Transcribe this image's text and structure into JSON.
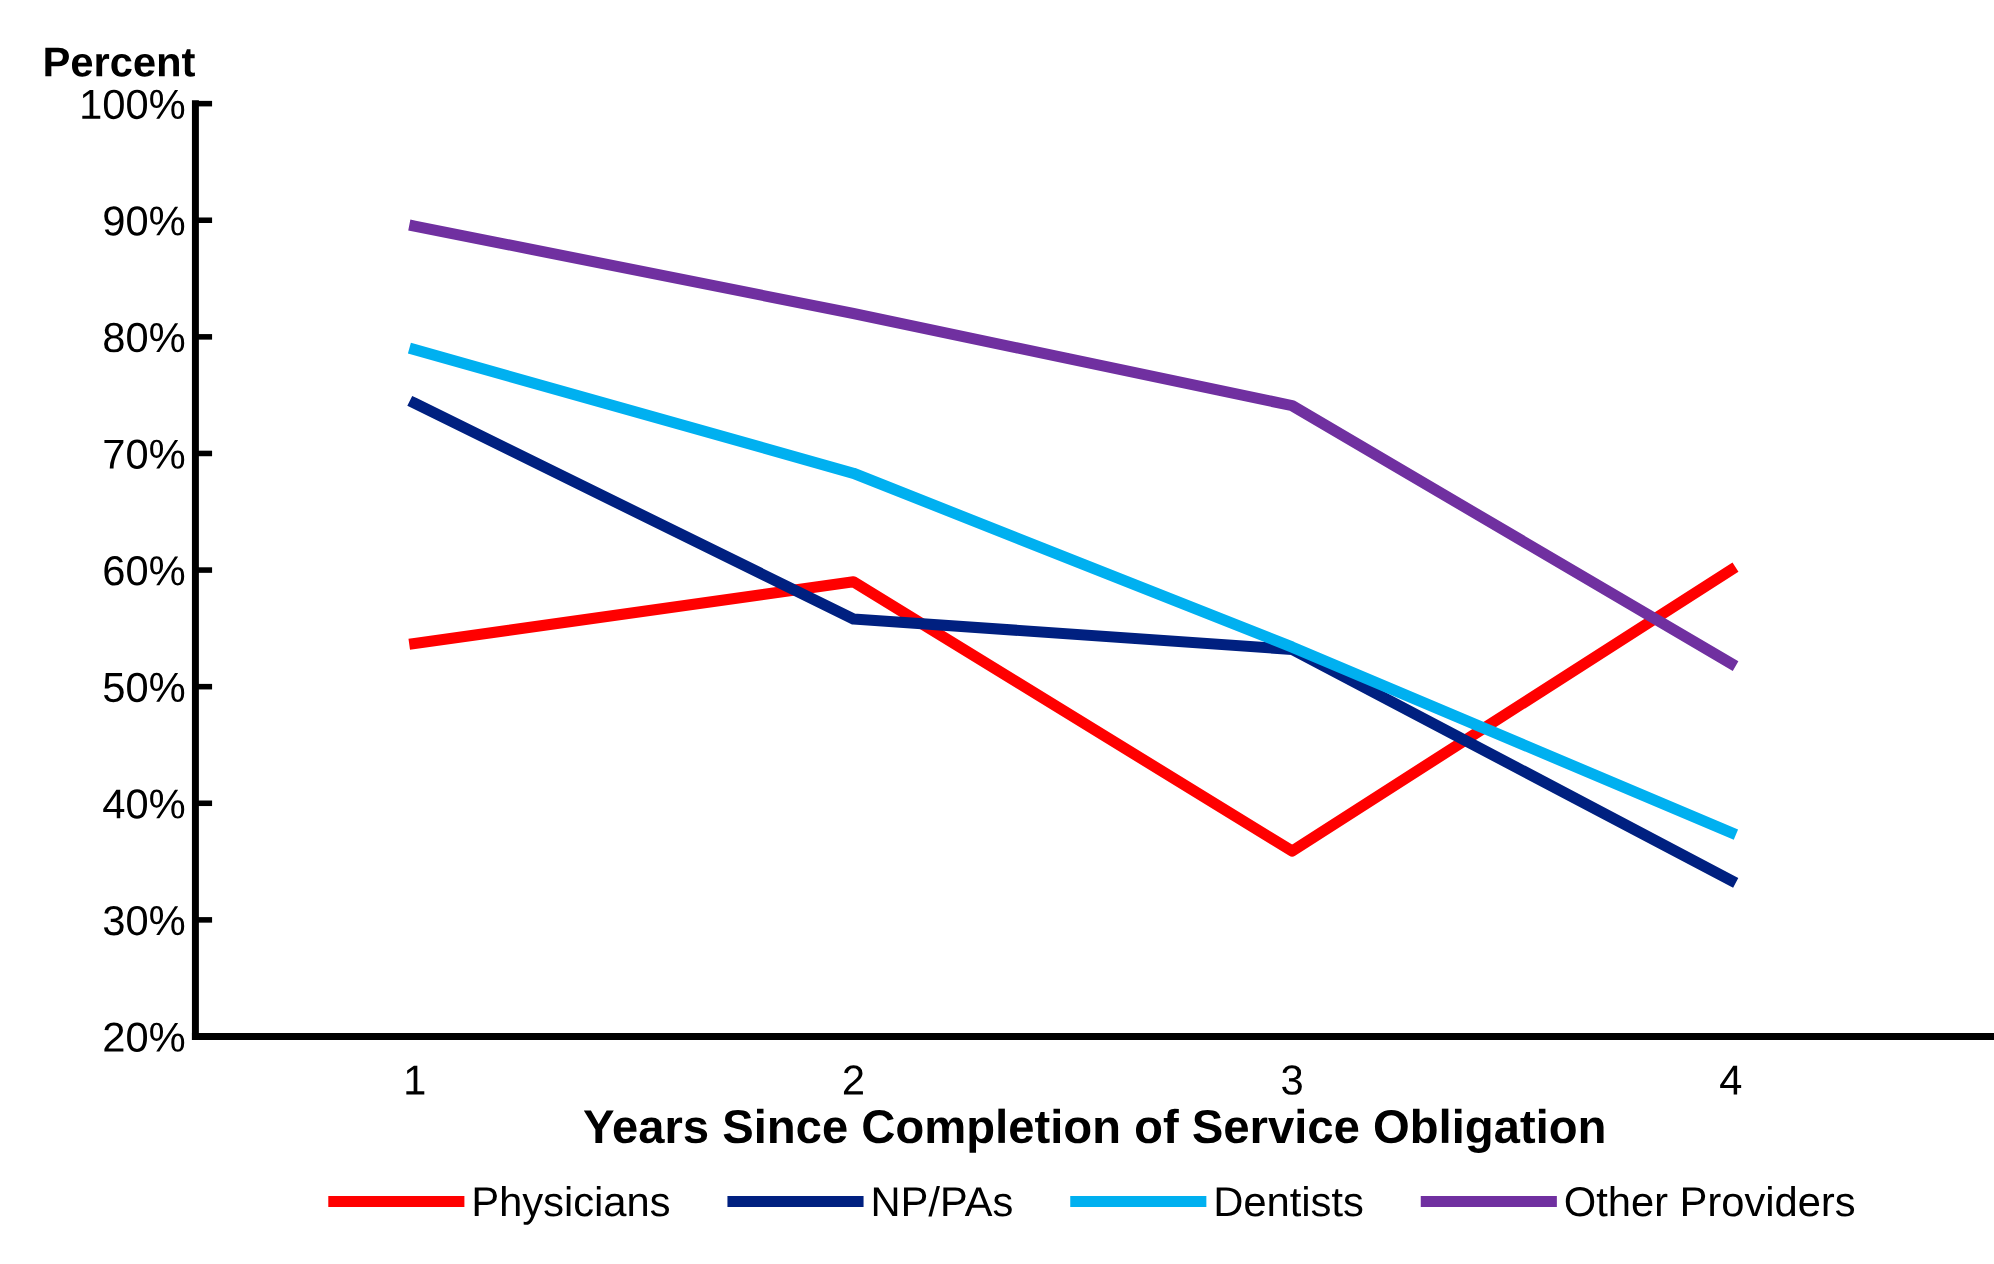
{
  "chart_data": {
    "type": "line",
    "ylabel": "Percent",
    "xlabel": "Years Since Completion of Service Obligation",
    "categories": [
      "1",
      "2",
      "3",
      "4"
    ],
    "series": [
      {
        "name": "Physicians",
        "color": "#ff0000",
        "values": [
          53.7,
          59.0,
          35.9,
          60.0
        ]
      },
      {
        "name": "NP/PAs",
        "color": "#002080",
        "values": [
          74.3,
          55.8,
          53.2,
          33.4
        ]
      },
      {
        "name": "Dentists",
        "color": "#00b0f0",
        "values": [
          78.9,
          68.3,
          53.4,
          37.5
        ]
      },
      {
        "name": "Other Providers",
        "color": "#7030a0",
        "values": [
          89.5,
          82.0,
          74.1,
          52.0
        ]
      }
    ],
    "ylim": [
      20,
      100
    ],
    "yticks": [
      {
        "value": 20,
        "label": "20%"
      },
      {
        "value": 30,
        "label": "30%"
      },
      {
        "value": 40,
        "label": "40%"
      },
      {
        "value": 50,
        "label": "50%"
      },
      {
        "value": 60,
        "label": "60%"
      },
      {
        "value": 70,
        "label": "70%"
      },
      {
        "value": 80,
        "label": "80%"
      },
      {
        "value": 90,
        "label": "90%"
      },
      {
        "value": 100,
        "label": "100%"
      }
    ],
    "grid": false,
    "legend": "bottom",
    "marker": "none",
    "line_style": "solid"
  }
}
